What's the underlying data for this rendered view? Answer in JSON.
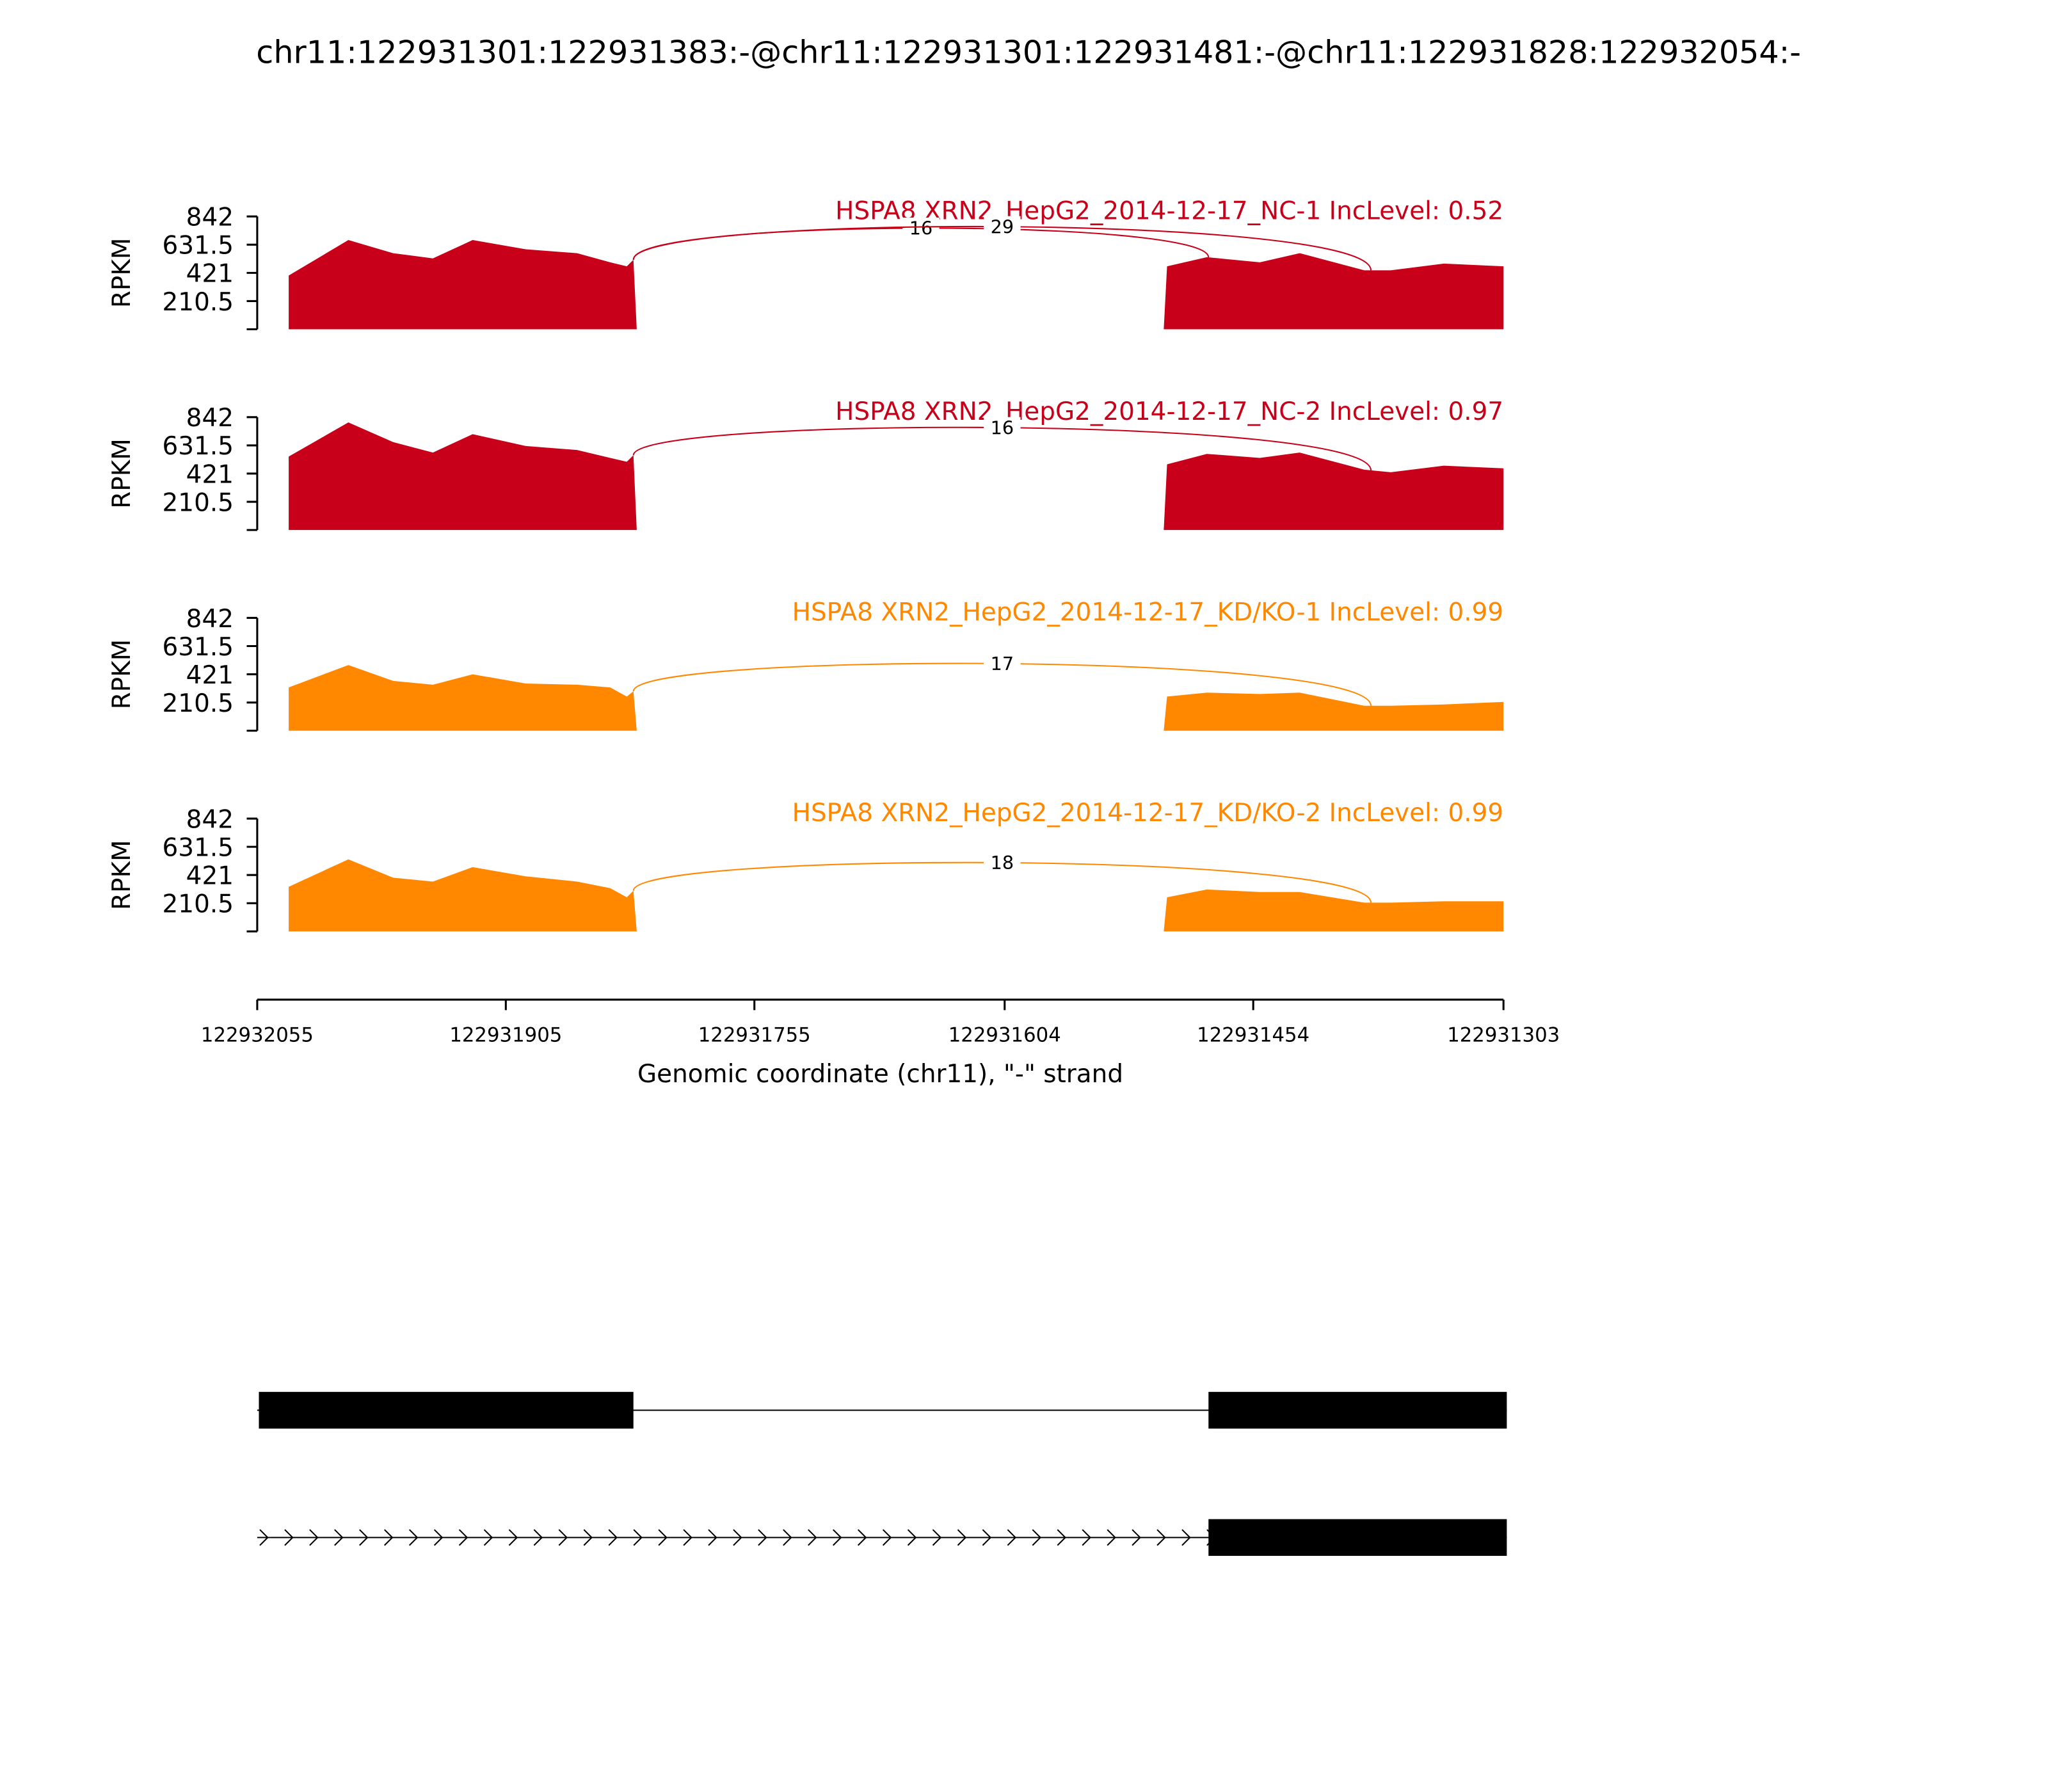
{
  "title": "chr11:122931301:122931383:-@chr11:122931301:122931481:-@chr11:122931828:122932054:-",
  "chart_data": [
    {
      "type": "area",
      "label": "HSPA8 XRN2_HepG2_2014-12-17_NC-1 IncLevel: 0.52",
      "color": "#c8001a",
      "ylabel": "RPKM",
      "ylim": [
        0,
        842
      ],
      "yticks": [
        210.5,
        421,
        631.5,
        842
      ],
      "x": [
        122932036,
        122932000,
        122931973,
        122931949,
        122931925,
        122931893,
        122931862,
        122931842,
        122931832,
        122931828,
        122931826,
        122931508,
        122931506,
        122931482,
        122931450,
        122931426,
        122931387,
        122931371,
        122931339,
        122931303
      ],
      "values": [
        401,
        666,
        568,
        529,
        666,
        597,
        568,
        500,
        470,
        519,
        0,
        0,
        470,
        538,
        500,
        568,
        440,
        440,
        490,
        470
      ],
      "junctions": [
        {
          "start": 122931828,
          "end": 122931481,
          "count": 16
        },
        {
          "start": 122931828,
          "end": 122931383,
          "count": 29
        }
      ]
    },
    {
      "type": "area",
      "label": "HSPA8 XRN2_HepG2_2014-12-17_NC-2 IncLevel: 0.97",
      "color": "#c8001a",
      "ylabel": "RPKM",
      "ylim": [
        0,
        842
      ],
      "yticks": [
        210.5,
        421,
        631.5,
        842
      ],
      "x": [
        122932036,
        122932000,
        122931973,
        122931949,
        122931925,
        122931893,
        122931862,
        122931842,
        122931832,
        122931828,
        122931826,
        122931508,
        122931506,
        122931482,
        122931450,
        122931426,
        122931387,
        122931371,
        122931339,
        122931303
      ],
      "values": [
        548,
        803,
        656,
        578,
        715,
        627,
        597,
        538,
        509,
        558,
        0,
        0,
        490,
        568,
        538,
        578,
        450,
        431,
        480,
        460
      ],
      "junctions": [
        {
          "start": 122931828,
          "end": 122931383,
          "count": 16
        }
      ]
    },
    {
      "type": "area",
      "label": "HSPA8 XRN2_HepG2_2014-12-17_KD/KO-1 IncLevel: 0.99",
      "color": "#ff8800",
      "ylabel": "RPKM",
      "ylim": [
        0,
        842
      ],
      "yticks": [
        210.5,
        421,
        631.5,
        842
      ],
      "x": [
        122932036,
        122932000,
        122931973,
        122931949,
        122931925,
        122931893,
        122931862,
        122931842,
        122931832,
        122931828,
        122931826,
        122931508,
        122931506,
        122931482,
        122931450,
        122931426,
        122931387,
        122931371,
        122931339,
        122931303
      ],
      "values": [
        323,
        490,
        372,
        343,
        421,
        352,
        343,
        323,
        255,
        294,
        0,
        0,
        255,
        284,
        274,
        284,
        186,
        186,
        196,
        215
      ],
      "junctions": [
        {
          "start": 122931828,
          "end": 122931383,
          "count": 17
        }
      ]
    },
    {
      "type": "area",
      "label": "HSPA8 XRN2_HepG2_2014-12-17_KD/KO-2 IncLevel: 0.99",
      "color": "#ff8800",
      "ylabel": "RPKM",
      "ylim": [
        0,
        842
      ],
      "yticks": [
        210.5,
        421,
        631.5,
        842
      ],
      "x": [
        122932036,
        122932000,
        122931973,
        122931949,
        122931925,
        122931893,
        122931862,
        122931842,
        122931832,
        122931828,
        122931826,
        122931508,
        122931506,
        122931482,
        122931450,
        122931426,
        122931387,
        122931371,
        122931339,
        122931303
      ],
      "values": [
        333,
        538,
        401,
        372,
        480,
        411,
        372,
        323,
        255,
        304,
        0,
        0,
        255,
        313,
        294,
        294,
        215,
        215,
        225,
        225
      ],
      "junctions": [
        {
          "start": 122931828,
          "end": 122931383,
          "count": 18
        }
      ]
    }
  ],
  "x_axis": {
    "xlim": [
      122932055,
      122931303
    ],
    "xticks": [
      122932055,
      122931905,
      122931755,
      122931604,
      122931454,
      122931303
    ],
    "label": "Genomic coordinate (chr11), \"-\" strand"
  },
  "gene_models": [
    {
      "exons": [
        [
          122932054,
          122931828
        ],
        [
          122931481,
          122931301
        ]
      ]
    },
    {
      "exons": [
        [
          122931481,
          122931301
        ]
      ]
    }
  ]
}
